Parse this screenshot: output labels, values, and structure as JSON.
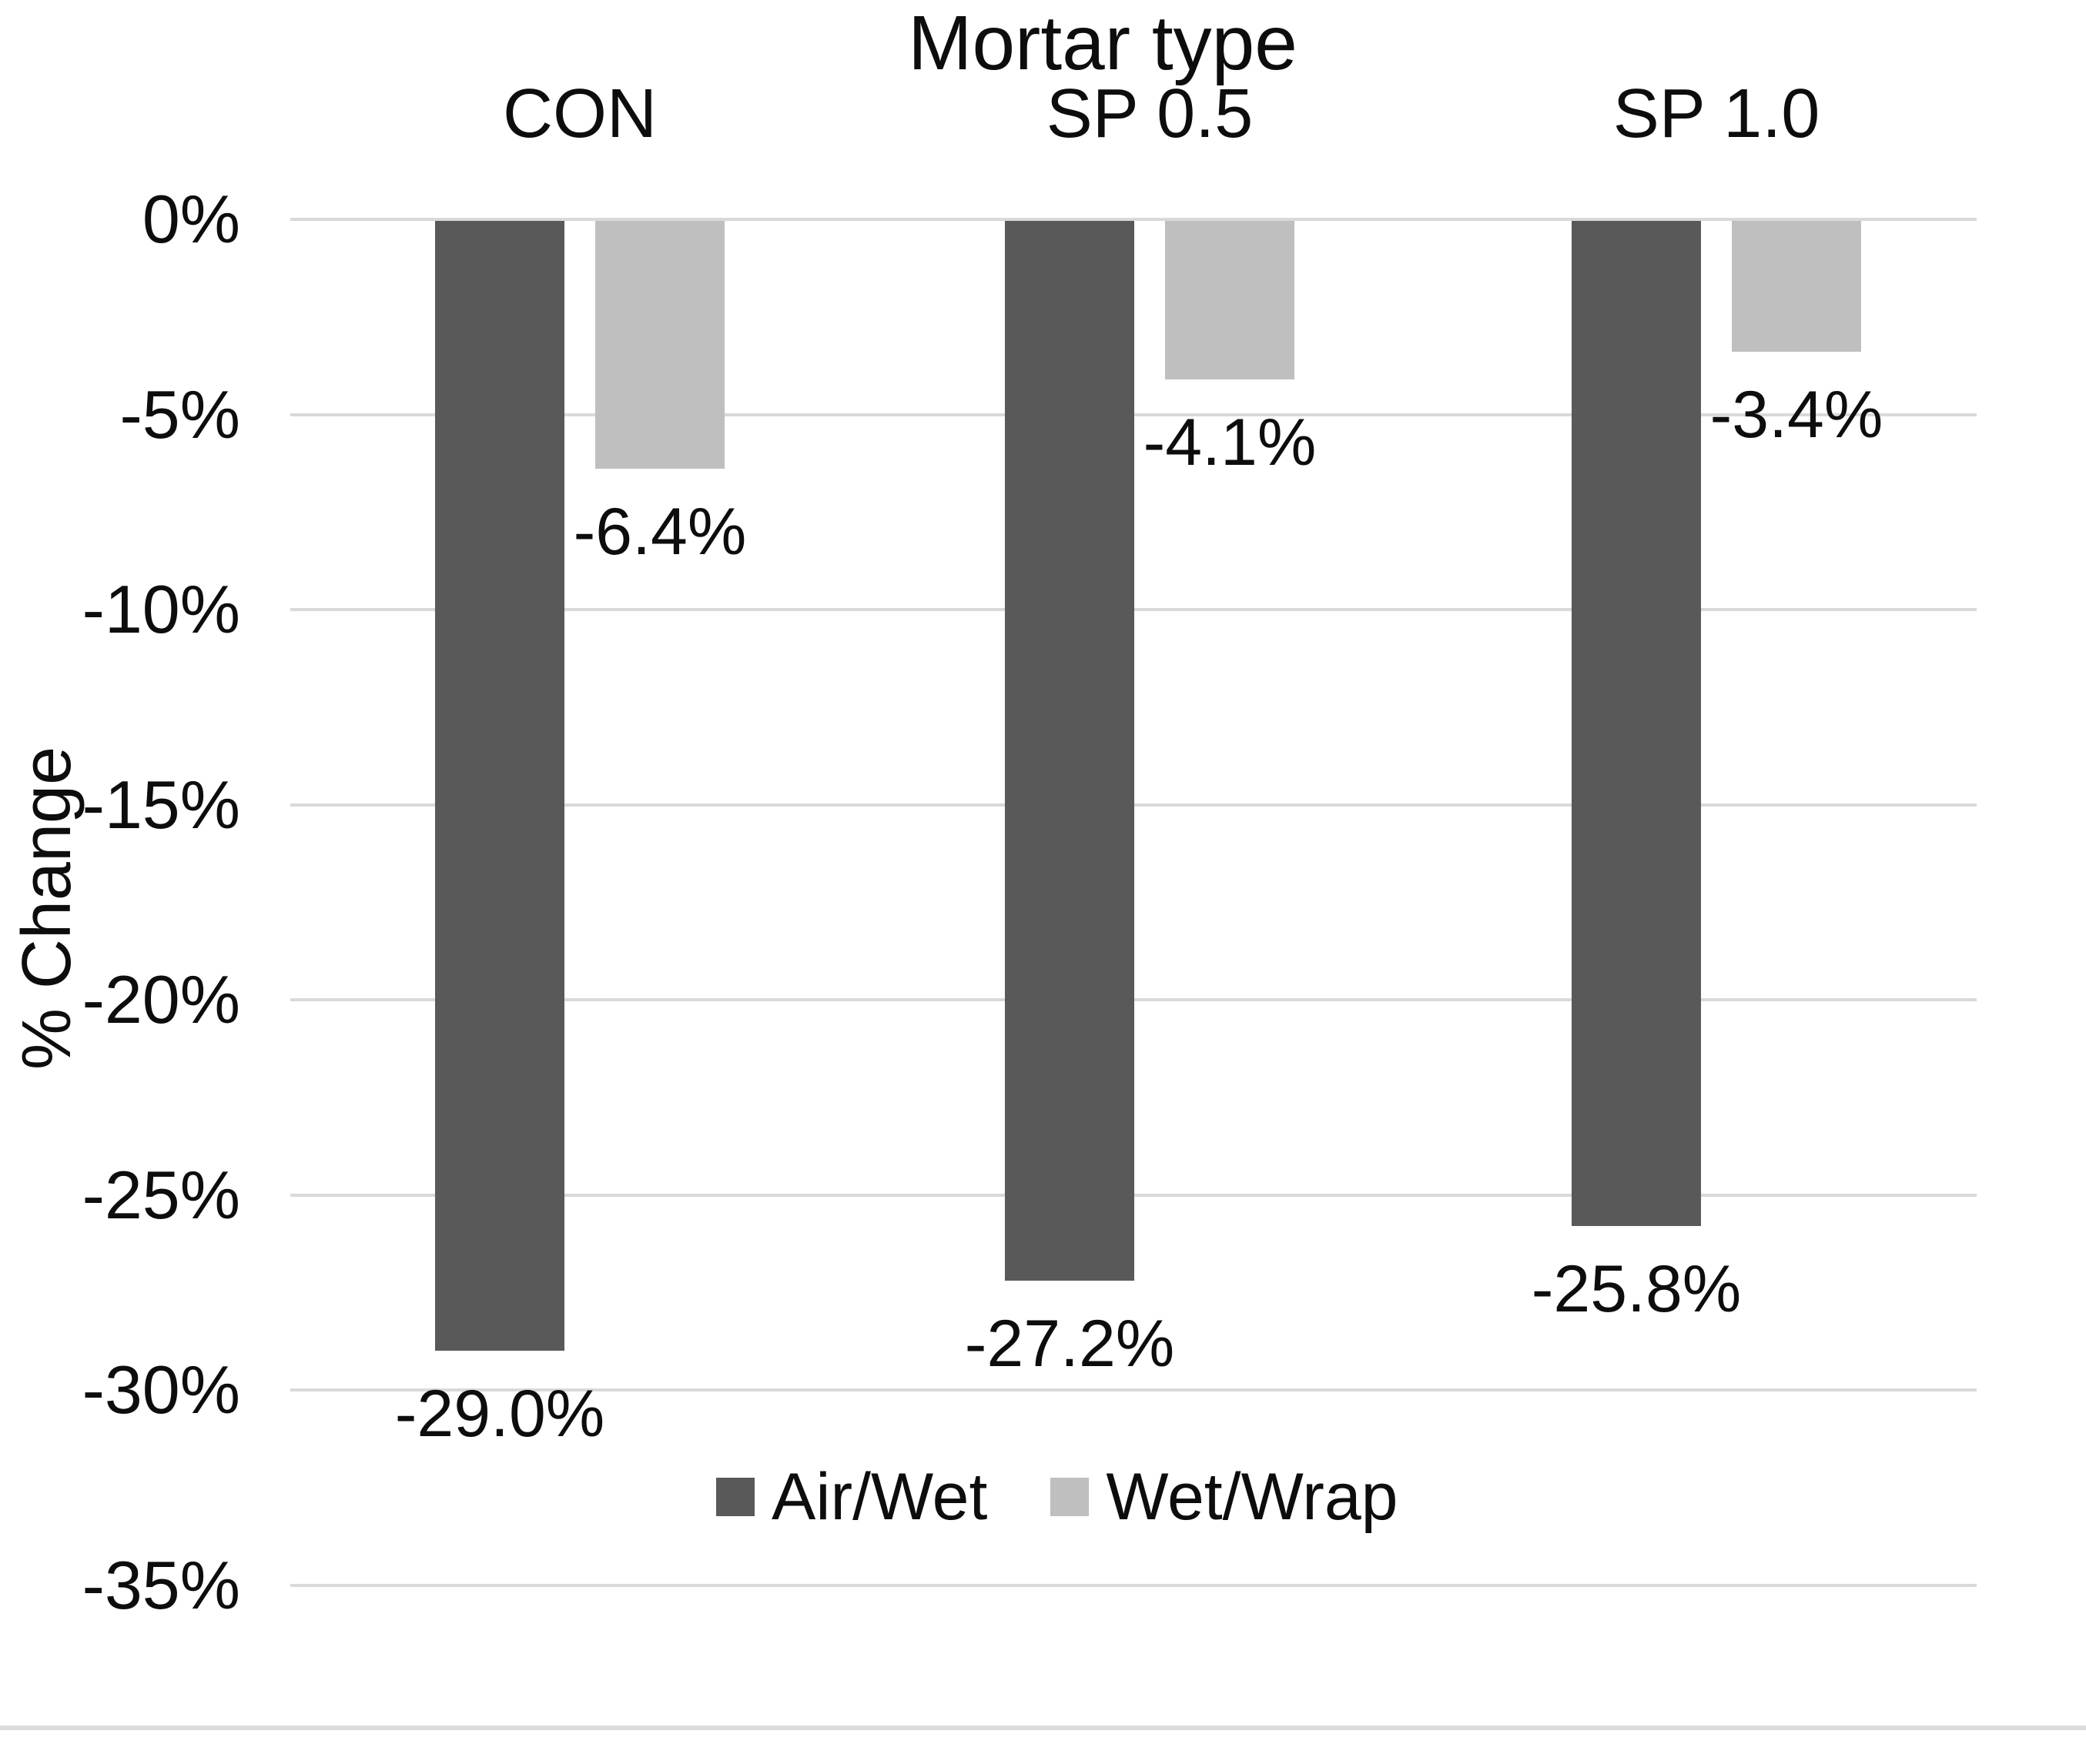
{
  "chart_data": {
    "type": "bar",
    "title": "Mortar type",
    "ylabel": "% Change",
    "categories": [
      "CON",
      "SP 0.5",
      "SP 1.0"
    ],
    "series": [
      {
        "name": "Air/Wet",
        "color": "#595959",
        "values": [
          -29.0,
          -27.2,
          -25.8
        ],
        "data_labels": [
          "-29.0%",
          "-27.2%",
          "-25.8%"
        ]
      },
      {
        "name": "Wet/Wrap",
        "color": "#bfbfbf",
        "values": [
          -6.4,
          -4.1,
          -3.4
        ],
        "data_labels": [
          "-6.4%",
          "-4.1%",
          "-3.4%"
        ]
      }
    ],
    "y_axis": {
      "tick_values": [
        0,
        -5,
        -10,
        -15,
        -20,
        -25,
        -30,
        -35
      ],
      "tick_labels": [
        "0%",
        "-5%",
        "-10%",
        "-15%",
        "-20%",
        "-25%",
        "-30%",
        "-35%"
      ],
      "ylim": [
        0,
        -35
      ]
    },
    "grid": true,
    "gridline_color": "#d9d9d9",
    "bottom_border_color": "#dcdcdc",
    "legend_position": "bottom"
  }
}
